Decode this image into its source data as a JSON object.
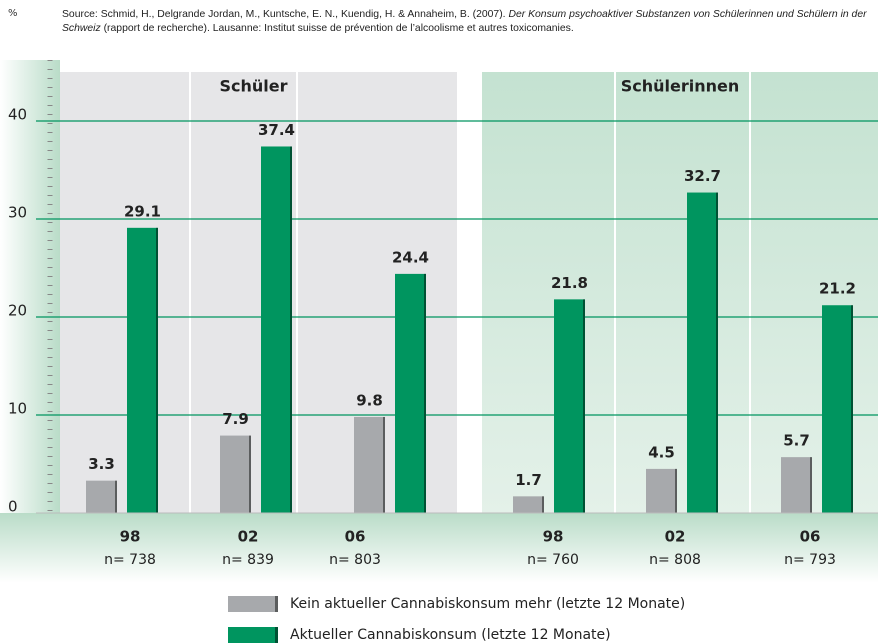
{
  "chart_data": {
    "type": "bar",
    "source": {
      "before": "Source: Schmid, H., Delgrande Jordan, M., Kuntsche, E. N., Kuendig, H. & Annaheim, B. (2007). ",
      "title": "Der Konsum psychoaktiver Substanzen von Schülerinnen und Schülern in der Schweiz",
      "after": " (rapport de recherche). Lausanne: Institut suisse de prévention de l’alcoolisme et autres toxicomanies."
    },
    "y_unit": "%",
    "groups": [
      "Schüler",
      "Schülerinnen"
    ],
    "categories": [
      "98",
      "02",
      "06",
      "98",
      "02",
      "06"
    ],
    "n_labels": [
      "n= 738",
      "n= 839",
      "n= 803",
      "n= 760",
      "n= 808",
      "n= 793"
    ],
    "series": [
      {
        "name": "Kein aktueller Cannabiskonsum mehr (letzte 12 Monate)",
        "color": "#a7a9ac",
        "values": [
          3.3,
          7.9,
          9.8,
          1.7,
          4.5,
          5.7
        ]
      },
      {
        "name": "Aktueller Cannabiskonsum (letzte 12 Monate)",
        "color": "#00955f",
        "values": [
          29.1,
          37.4,
          24.4,
          21.8,
          32.7,
          21.2
        ]
      }
    ],
    "ylim": [
      0,
      45
    ],
    "yticks": [
      0,
      10,
      20,
      30,
      40
    ],
    "grid": true
  }
}
